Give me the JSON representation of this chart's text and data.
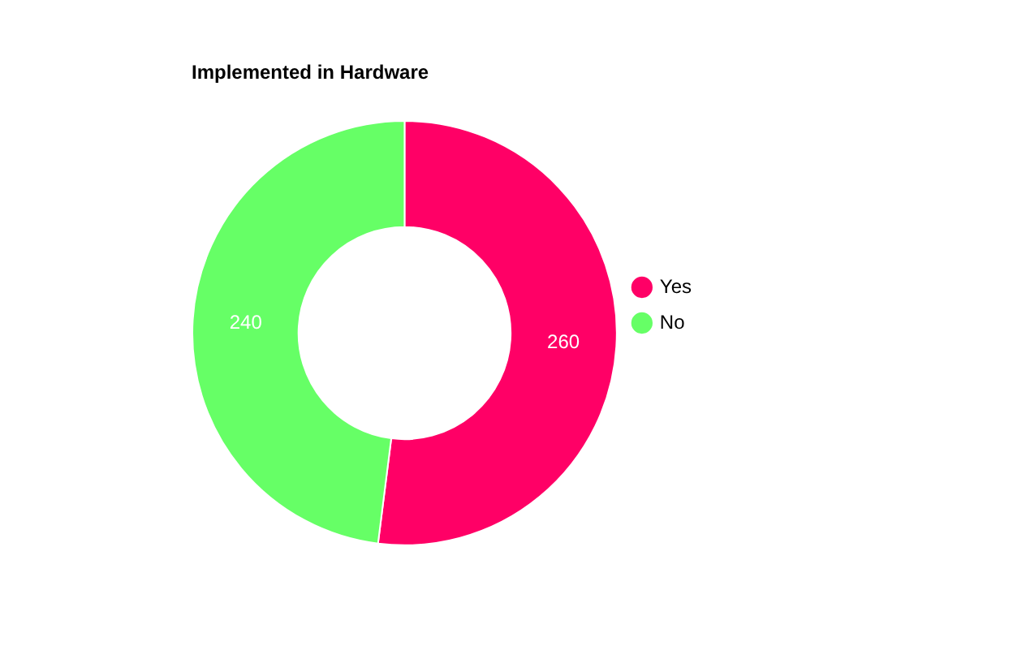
{
  "chart_data": {
    "type": "donut",
    "title": "Implemented in Hardware",
    "categories": [
      "Yes",
      "No"
    ],
    "values": [
      260,
      240
    ],
    "colors": [
      "#ff0066",
      "#66ff66"
    ],
    "data_labels": true,
    "legend": "right"
  }
}
